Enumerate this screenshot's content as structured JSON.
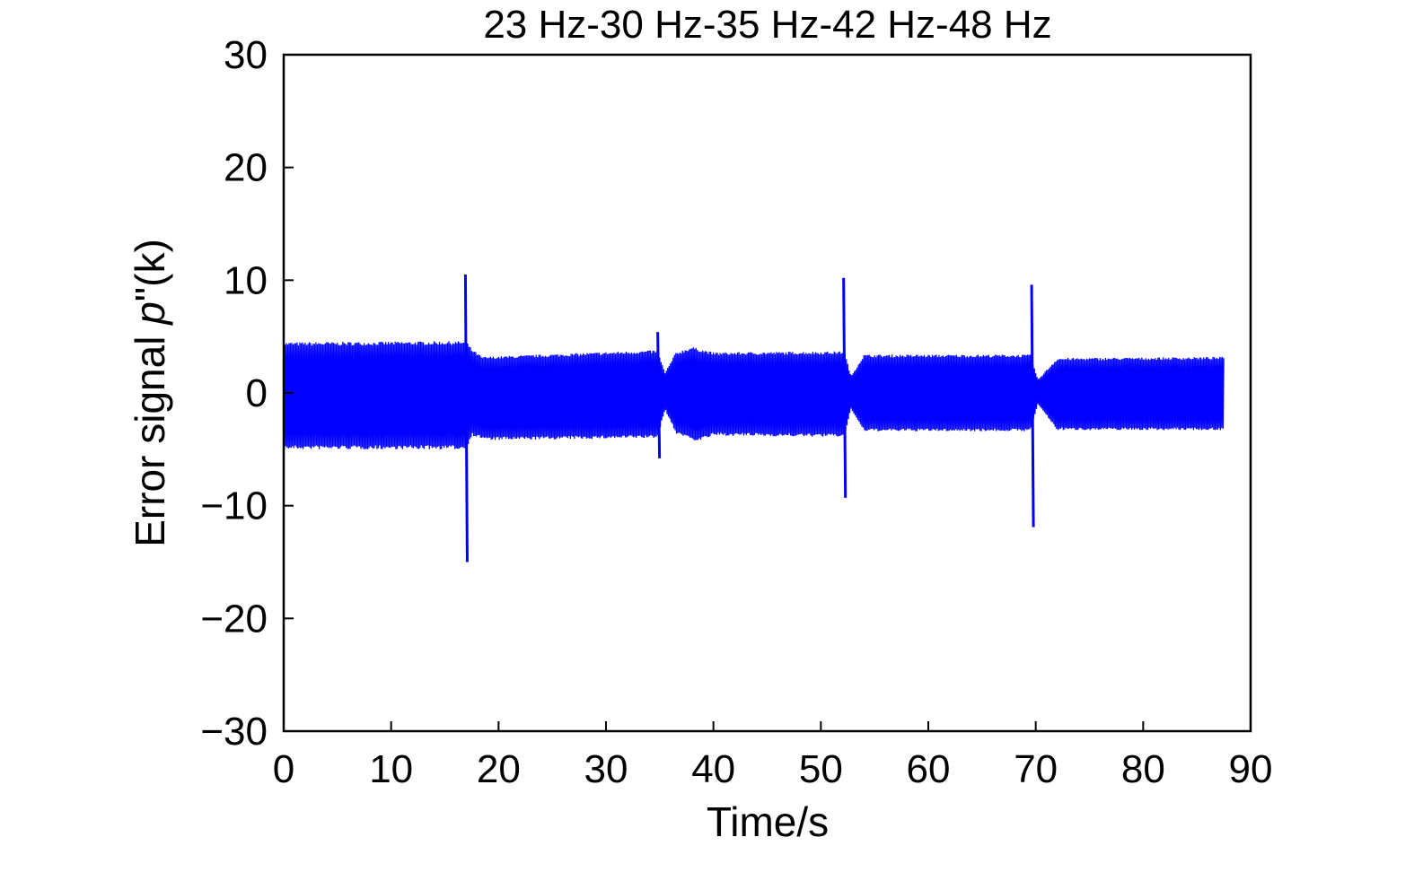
{
  "chart_data": {
    "type": "line",
    "title": "23 Hz-30 Hz-35 Hz-42 Hz-48 Hz",
    "xlabel": "Time/s",
    "ylabel_prefix": "Error signal ",
    "ylabel_var": "p",
    "ylabel_suffix": "\"(k)",
    "xlim": [
      0,
      90
    ],
    "ylim": [
      -30,
      30
    ],
    "xticks": [
      0,
      10,
      20,
      30,
      40,
      50,
      60,
      70,
      80,
      90
    ],
    "yticks": [
      30,
      20,
      10,
      0,
      -10,
      -20,
      -30
    ],
    "ytick_labels": [
      "30",
      "20",
      "10",
      "0",
      "−10",
      "−20",
      "−30"
    ],
    "grid": false,
    "line_color": "#0000ff",
    "series": [
      {
        "frequency_segments_hz": [
          23,
          30,
          35,
          42,
          48
        ],
        "envelope_upper": [
          [
            0,
            4.5
          ],
          [
            17,
            4.6
          ],
          [
            17.5,
            3.9
          ],
          [
            18.5,
            3.2
          ],
          [
            34.8,
            3.8
          ],
          [
            35.5,
            1.8
          ],
          [
            36.5,
            3.6
          ],
          [
            38,
            4.1
          ],
          [
            40,
            3.6
          ],
          [
            52.2,
            3.7
          ],
          [
            52.8,
            1.5
          ],
          [
            54,
            3.4
          ],
          [
            69.5,
            3.4
          ],
          [
            70.2,
            1.2
          ],
          [
            72,
            3.1
          ],
          [
            87.5,
            3.2
          ]
        ],
        "envelope_lower": [
          [
            0,
            -5.0
          ],
          [
            17,
            -5.0
          ],
          [
            17.5,
            -3.8
          ],
          [
            19,
            -4.2
          ],
          [
            34.8,
            -4.0
          ],
          [
            35.5,
            -1.5
          ],
          [
            36.5,
            -3.6
          ],
          [
            38.5,
            -4.3
          ],
          [
            40,
            -3.8
          ],
          [
            52.2,
            -3.9
          ],
          [
            52.8,
            -1.4
          ],
          [
            54,
            -3.4
          ],
          [
            69.5,
            -3.4
          ],
          [
            70.2,
            -1.0
          ],
          [
            72,
            -3.3
          ],
          [
            87.5,
            -3.3
          ]
        ],
        "spikes": [
          {
            "t": 17.0,
            "max": 10.5,
            "min": -15.0
          },
          {
            "t": 34.9,
            "max": 5.4,
            "min": -5.8
          },
          {
            "t": 52.2,
            "max": 10.2,
            "min": -9.3
          },
          {
            "t": 69.7,
            "max": 9.6,
            "min": -11.9
          }
        ],
        "end_time": 87.5
      }
    ]
  }
}
